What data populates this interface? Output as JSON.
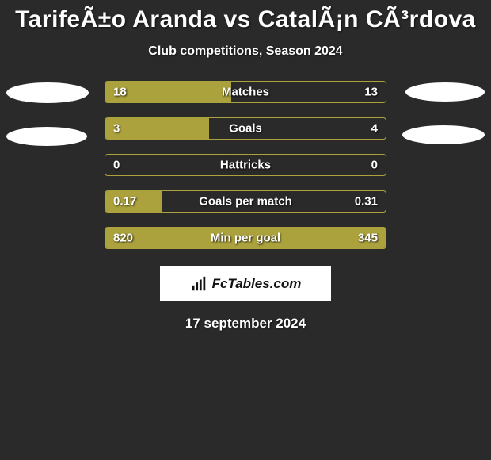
{
  "title": "TarifeÃ±o Aranda vs CatalÃ¡n CÃ³rdova",
  "subtitle": "Club competitions, Season 2024",
  "date": "17 september 2024",
  "footer_brand": "FcTables.com",
  "colors": {
    "background": "#2a2a2a",
    "bar_border": "#aba13d",
    "bar_fill": "#aba13d",
    "text": "#ffffff",
    "badge_bg": "#ffffff",
    "badge_text": "#111111"
  },
  "typography": {
    "title_fontsize": 30,
    "subtitle_fontsize": 16,
    "bar_label_fontsize": 15,
    "date_fontsize": 17,
    "weight": 800
  },
  "left_ellipses": [
    {
      "w": 104,
      "h": 26
    },
    {
      "w": 102,
      "h": 24
    }
  ],
  "right_ellipses": [
    {
      "w": 100,
      "h": 24
    },
    {
      "w": 104,
      "h": 24
    }
  ],
  "bars": [
    {
      "label": "Matches",
      "left": "18",
      "right": "13",
      "fill_pct": 45
    },
    {
      "label": "Goals",
      "left": "3",
      "right": "4",
      "fill_pct": 37
    },
    {
      "label": "Hattricks",
      "left": "0",
      "right": "0",
      "fill_pct": 0
    },
    {
      "label": "Goals per match",
      "left": "0.17",
      "right": "0.31",
      "fill_pct": 20
    },
    {
      "label": "Min per goal",
      "left": "820",
      "right": "345",
      "fill_pct": 100
    }
  ]
}
